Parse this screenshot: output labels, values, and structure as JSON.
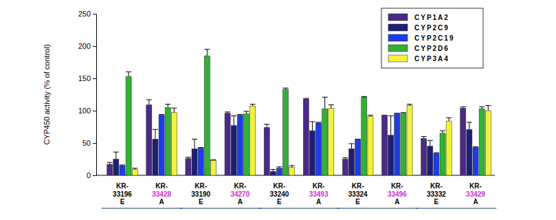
{
  "chart_data": {
    "type": "bar",
    "y_label": "CYP450 activity (% of control)",
    "categories": [
      "KR-\n33196\nE",
      "KR-\n33428\nA",
      "KR-\n33190\nE",
      "KR-\n34270\nA",
      "KR-\n33240\nE",
      "KR-\n33493\nA",
      "KR-\n33324\nE",
      "KR-\n33496\nA",
      "KR-\n33332\nE",
      "KR-\n33429\nA"
    ],
    "series": [
      {
        "name": "CYP1A2",
        "color": "#4b2a86",
        "values": [
          17,
          109,
          26,
          96,
          74,
          118,
          25,
          92,
          57,
          104
        ],
        "errors": [
          3,
          8,
          2,
          2,
          5,
          1,
          2,
          1,
          3,
          2
        ]
      },
      {
        "name": "CYP2C9",
        "color": "#1e1e78",
        "values": [
          25,
          56,
          41,
          77,
          6,
          69,
          41,
          62,
          45,
          71
        ],
        "errors": [
          11,
          15,
          15,
          15,
          3,
          14,
          8,
          30,
          9,
          11
        ]
      },
      {
        "name": "CYP2C19",
        "color": "#1e3ce6",
        "values": [
          15,
          93,
          42,
          93,
          11,
          81,
          55,
          95,
          34,
          43
        ],
        "errors": [
          1,
          1,
          1,
          1,
          2,
          1,
          1,
          1,
          1,
          1
        ]
      },
      {
        "name": "CYP2D6",
        "color": "#33b035",
        "values": [
          153,
          105,
          185,
          95,
          133,
          103,
          121,
          96,
          65,
          103
        ],
        "errors": [
          7,
          5,
          10,
          4,
          2,
          18,
          1,
          1,
          4,
          3
        ]
      },
      {
        "name": "CYP3A4",
        "color": "#f2f23c",
        "values": [
          9,
          97,
          23,
          107,
          12,
          104,
          91,
          108,
          84,
          100
        ],
        "errors": [
          2,
          7,
          1,
          3,
          3,
          5,
          2,
          2,
          5,
          8
        ]
      }
    ],
    "ylim": [
      0,
      250
    ],
    "yticks": [
      0,
      50,
      100,
      150,
      200,
      250
    ],
    "legend": "upper-right",
    "grid": false
  }
}
